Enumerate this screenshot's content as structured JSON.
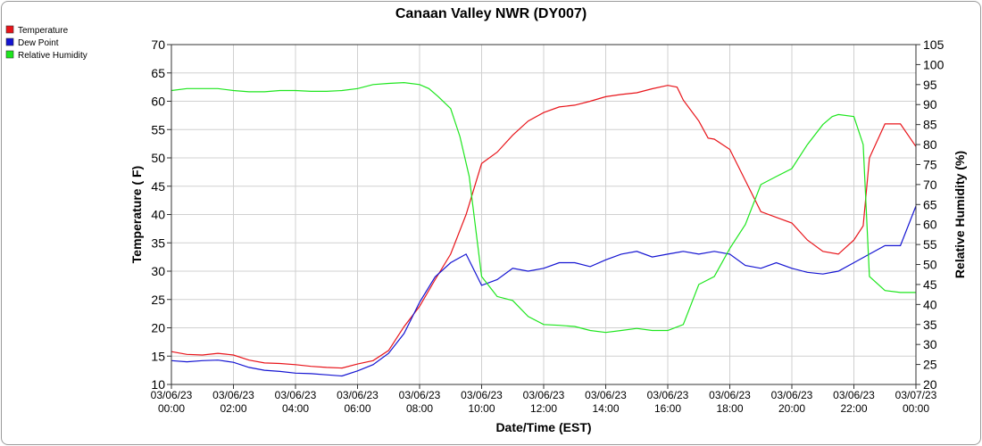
{
  "chart_data": {
    "type": "line",
    "title": "Canaan Valley NWR (DY007)",
    "xlabel": "Date/Time (EST)",
    "ylabel": "Temperature ( F)",
    "y2label": "Relative Humidity (%)",
    "ylim": [
      10,
      70
    ],
    "y2lim": [
      20,
      105
    ],
    "grid": true,
    "legend_position": "top-left",
    "x_ticks": [
      {
        "hour": 0,
        "date": "03/06/23",
        "time": "00:00"
      },
      {
        "hour": 2,
        "date": "03/06/23",
        "time": "02:00"
      },
      {
        "hour": 4,
        "date": "03/06/23",
        "time": "04:00"
      },
      {
        "hour": 6,
        "date": "03/06/23",
        "time": "06:00"
      },
      {
        "hour": 8,
        "date": "03/06/23",
        "time": "08:00"
      },
      {
        "hour": 10,
        "date": "03/06/23",
        "time": "10:00"
      },
      {
        "hour": 12,
        "date": "03/06/23",
        "time": "12:00"
      },
      {
        "hour": 14,
        "date": "03/06/23",
        "time": "14:00"
      },
      {
        "hour": 16,
        "date": "03/06/23",
        "time": "16:00"
      },
      {
        "hour": 18,
        "date": "03/06/23",
        "time": "18:00"
      },
      {
        "hour": 20,
        "date": "03/06/23",
        "time": "20:00"
      },
      {
        "hour": 22,
        "date": "03/06/23",
        "time": "22:00"
      },
      {
        "hour": 24,
        "date": "03/07/23",
        "time": "00:00"
      }
    ],
    "y_ticks": [
      10,
      15,
      20,
      25,
      30,
      35,
      40,
      45,
      50,
      55,
      60,
      65,
      70
    ],
    "y2_ticks": [
      20,
      25,
      30,
      35,
      40,
      45,
      50,
      55,
      60,
      65,
      70,
      75,
      80,
      85,
      90,
      95,
      100,
      105
    ],
    "series": [
      {
        "name": "Temperature",
        "color": "#e8141a",
        "axis": "left",
        "x": [
          0,
          0.5,
          1,
          1.5,
          2,
          2.5,
          3,
          3.5,
          4,
          4.5,
          5,
          5.5,
          6,
          6.5,
          7,
          7.5,
          8,
          8.5,
          9,
          9.5,
          10,
          10.5,
          11,
          11.5,
          12,
          12.5,
          13,
          13.5,
          14,
          14.5,
          15,
          15.5,
          16,
          16.3,
          16.5,
          17,
          17.3,
          17.5,
          18,
          18.5,
          19,
          19.5,
          20,
          20.5,
          21,
          21.5,
          22,
          22.3,
          22.5,
          23,
          23.5,
          24
        ],
        "values": [
          15.8,
          15.3,
          15.2,
          15.5,
          15.2,
          14.3,
          13.8,
          13.7,
          13.5,
          13.2,
          13.0,
          12.9,
          13.6,
          14.2,
          16.0,
          20.2,
          23.8,
          28.5,
          33.0,
          40.0,
          49.0,
          51.0,
          54.0,
          56.5,
          58.0,
          59.0,
          59.3,
          60.0,
          60.8,
          61.2,
          61.5,
          62.2,
          62.8,
          62.5,
          60.2,
          56.5,
          53.5,
          53.3,
          51.5,
          46.0,
          40.5,
          39.5,
          38.5,
          35.5,
          33.5,
          33.0,
          35.5,
          38.0,
          50.0,
          56.0,
          56.0,
          52.0
        ]
      },
      {
        "name": "Dew Point",
        "color": "#1414d2",
        "axis": "left",
        "x": [
          0,
          0.5,
          1,
          1.5,
          2,
          2.5,
          3,
          3.5,
          4,
          4.5,
          5,
          5.5,
          6,
          6.5,
          7,
          7.5,
          8,
          8.5,
          9,
          9.5,
          10,
          10.5,
          11,
          11.5,
          12,
          12.5,
          13,
          13.5,
          14,
          14.5,
          15,
          15.5,
          16,
          16.5,
          17,
          17.5,
          18,
          18.5,
          19,
          19.5,
          20,
          20.5,
          21,
          21.5,
          22,
          22.5,
          23,
          23.5,
          24
        ],
        "values": [
          14.2,
          14.0,
          14.2,
          14.3,
          13.9,
          13.0,
          12.5,
          12.3,
          12.0,
          11.9,
          11.7,
          11.5,
          12.4,
          13.5,
          15.5,
          19.0,
          24.5,
          29.0,
          31.5,
          33.0,
          27.5,
          28.5,
          30.5,
          30.0,
          30.5,
          31.5,
          31.5,
          30.8,
          32.0,
          33.0,
          33.5,
          32.5,
          33.0,
          33.5,
          33.0,
          33.5,
          33.0,
          31.0,
          30.5,
          31.5,
          30.5,
          29.8,
          29.5,
          30.0,
          31.5,
          33.0,
          34.5,
          34.5,
          41.5
        ]
      },
      {
        "name": "Relative Humidity",
        "color": "#1ee61e",
        "axis": "right",
        "x": [
          0,
          0.5,
          1,
          1.5,
          2,
          2.5,
          3,
          3.5,
          4,
          4.5,
          5,
          5.5,
          6,
          6.5,
          7,
          7.5,
          8,
          8.3,
          8.6,
          9,
          9.3,
          9.6,
          10,
          10.5,
          11,
          11.5,
          12,
          12.5,
          13,
          13.5,
          14,
          14.5,
          15,
          15.5,
          16,
          16.5,
          17,
          17.5,
          18,
          18.5,
          19,
          19.5,
          20,
          20.5,
          21,
          21.3,
          21.5,
          22,
          22.3,
          22.5,
          23,
          23.5,
          24
        ],
        "values": [
          93.5,
          94,
          94,
          94,
          93.5,
          93.2,
          93.2,
          93.5,
          93.5,
          93.3,
          93.3,
          93.5,
          94,
          95,
          95.3,
          95.5,
          95,
          94,
          92,
          89,
          82,
          72,
          47,
          42,
          41,
          37,
          35,
          34.8,
          34.5,
          33.5,
          33,
          33.5,
          34,
          33.5,
          33.5,
          35,
          45,
          47,
          54,
          60,
          70,
          72,
          74,
          80,
          85,
          87,
          87.5,
          87,
          80,
          47,
          43.5,
          43,
          43
        ]
      }
    ]
  }
}
